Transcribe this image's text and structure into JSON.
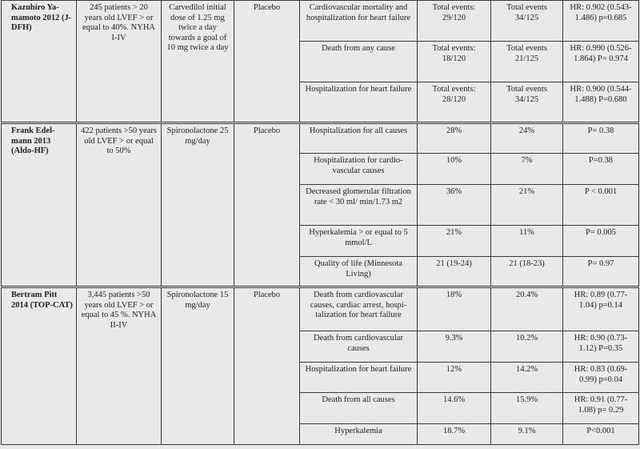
{
  "studies": [
    {
      "study": "Kazuhiro Ya-mamoto 2012 (J-DFH)",
      "population": "245 patients > 20 years old LVEF > or equal to 40%. NYHA I-IV",
      "intervention": "Carvedilol initial dose of 1.25 mg twice a day towards a goal of 10 mg twice a day",
      "control": "Placebo",
      "outcomes": [
        {
          "outcome": "Cardiovascular mortality and hospitalization for heart failure",
          "treatment": "Total events: 29/120",
          "placebo": "Total events 34/125",
          "result": "HR: 0.902 (0.543-1.486) p=0.685"
        },
        {
          "outcome": "Death from any cause",
          "treatment": "Total events: 18/120",
          "placebo": "Total events 21/125",
          "result": "HR: 0.990 (0.526-1.864) P= 0.974"
        },
        {
          "outcome": "Hospitalization for heart failure",
          "treatment": "Total events: 28/120",
          "placebo": "Total events 34/125",
          "result": "HR: 0.900 (0.544-1.488) P=0.680"
        }
      ]
    },
    {
      "study": "Frank Edel-mann 2013 (Aldo-HF)",
      "population": "422 patients >50 years old LVEF > or equal to 50%",
      "intervention": "Spironolactone 25 mg/day",
      "control": "Placebo",
      "outcomes": [
        {
          "outcome": "Hospitalization for all causes",
          "treatment": "28%",
          "placebo": "24%",
          "result": "P= 0.38"
        },
        {
          "outcome": "Hospitalization for cardio-vascular causes",
          "treatment": "10%",
          "placebo": "7%",
          "result": "P=0.38"
        },
        {
          "outcome": "Decreased glomerular filtration rate < 30 ml/ min/1.73 m2",
          "treatment": "36%",
          "placebo": "21%",
          "result": "P < 0.001"
        },
        {
          "outcome": "Hyperkalemia > or equal to 5 mmol/L",
          "treatment": "21%",
          "placebo": "11%",
          "result": "P= 0.005"
        },
        {
          "outcome": "Quality of life (Minnesota Living)",
          "treatment": "21 (19-24)",
          "placebo": "21 (18-23)",
          "result": "P= 0.97"
        }
      ]
    },
    {
      "study": "Bertram Pitt 2014 (TOP-CAT)",
      "population": "3,445 patients >50 years old LVEF > or equal to 45 %. NYHA II-IV",
      "intervention": "Spironolactone 15 mg/day",
      "control": "Placebo",
      "outcomes": [
        {
          "outcome": "Death from cardiovascular causes, cardiac arrest, hospi-talization for heart failure",
          "treatment": "18%",
          "placebo": "20.4%",
          "result": "HR: 0.89 (0.77-1.04) p=0.14"
        },
        {
          "outcome": "Death from cardiovascular causes",
          "treatment": "9.3%",
          "placebo": "10.2%",
          "result": "HR: 0.90 (0.73-1.12) P=0.35"
        },
        {
          "outcome": "Hospitalization for heart failure",
          "treatment": "12%",
          "placebo": "14.2%",
          "result": "HR: 0.83 (0.69-0.99) p=0.04"
        },
        {
          "outcome": "Death from all causes",
          "treatment": "14.6%",
          "placebo": "15.9%",
          "result": "HR: 0.91 (0.77-1.08) p= 0.29"
        },
        {
          "outcome": "Hyperkalemia",
          "treatment": "18.7%",
          "placebo": "9.1%",
          "result": "P<0.001"
        }
      ]
    }
  ]
}
